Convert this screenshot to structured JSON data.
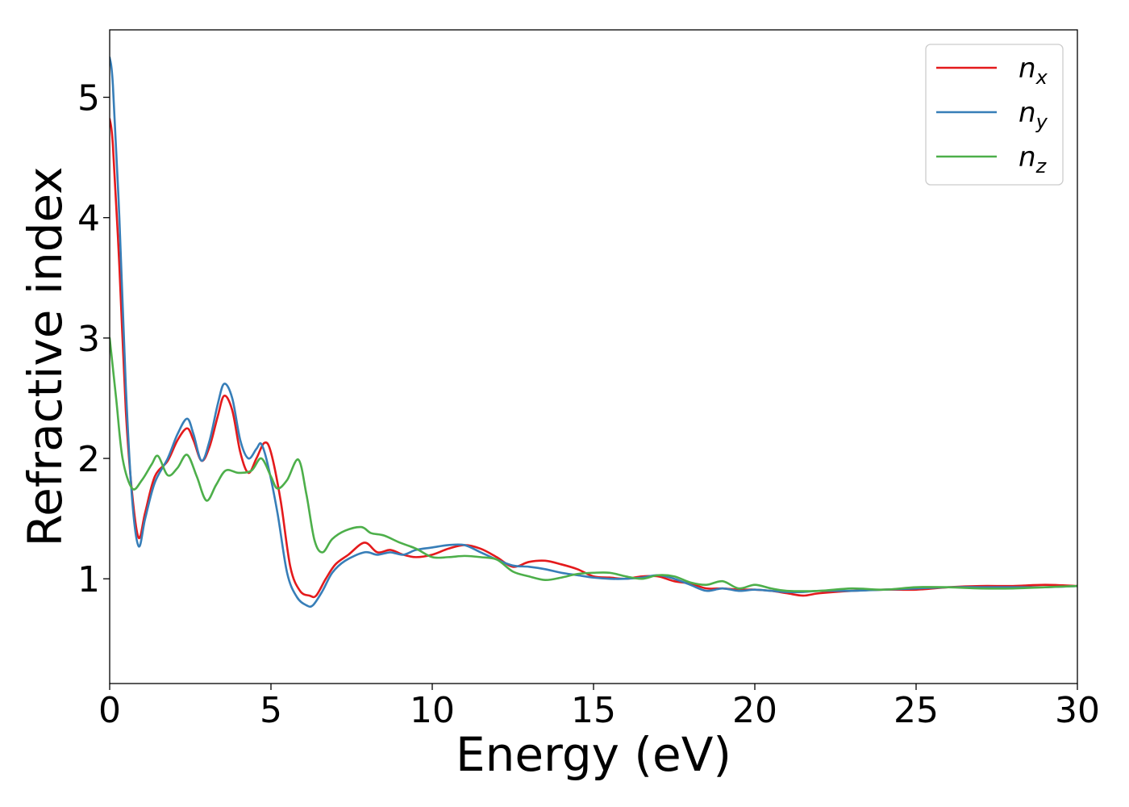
{
  "chart_data": {
    "type": "line",
    "title": "",
    "xlabel": "Energy (eV)",
    "ylabel": "Refractive index",
    "xlim": [
      0,
      30
    ],
    "ylim": [
      0.13,
      5.56
    ],
    "xticks": [
      0,
      5,
      10,
      15,
      20,
      25,
      30
    ],
    "yticks": [
      1,
      2,
      3,
      4,
      5
    ],
    "grid": false,
    "legend_placement": "top-right",
    "series": [
      {
        "name": "n",
        "subscript": "x",
        "color": "#e41a1c",
        "x": [
          0,
          0.1,
          0.3,
          0.5,
          0.7,
          0.9,
          1.1,
          1.4,
          1.8,
          2.1,
          2.4,
          2.6,
          2.85,
          3.1,
          3.35,
          3.55,
          3.8,
          4.05,
          4.3,
          4.55,
          4.8,
          5.0,
          5.3,
          5.6,
          5.9,
          6.2,
          6.4,
          6.7,
          7.0,
          7.4,
          7.9,
          8.3,
          8.7,
          9.1,
          9.5,
          10.0,
          10.5,
          11.0,
          11.5,
          12.0,
          12.5,
          13.0,
          13.5,
          14.0,
          14.5,
          15.0,
          15.5,
          16.0,
          16.5,
          17.0,
          17.5,
          18.0,
          18.5,
          19.0,
          19.5,
          20.0,
          20.5,
          21.0,
          21.5,
          22.0,
          23.0,
          24.0,
          25.0,
          26.0,
          27.0,
          28.0,
          29.0,
          30.0
        ],
        "values": [
          4.82,
          4.6,
          3.6,
          2.4,
          1.7,
          1.34,
          1.55,
          1.85,
          1.98,
          2.15,
          2.25,
          2.15,
          1.98,
          2.1,
          2.35,
          2.52,
          2.4,
          2.05,
          1.88,
          2.0,
          2.13,
          2.05,
          1.65,
          1.1,
          0.9,
          0.86,
          0.86,
          1.0,
          1.12,
          1.2,
          1.3,
          1.22,
          1.24,
          1.2,
          1.18,
          1.2,
          1.25,
          1.28,
          1.25,
          1.18,
          1.1,
          1.14,
          1.15,
          1.12,
          1.08,
          1.02,
          1.01,
          1.0,
          1.02,
          1.02,
          0.98,
          0.96,
          0.92,
          0.92,
          0.91,
          0.91,
          0.9,
          0.88,
          0.86,
          0.88,
          0.9,
          0.91,
          0.91,
          0.93,
          0.94,
          0.94,
          0.95,
          0.94
        ]
      },
      {
        "name": "n",
        "subscript": "y",
        "color": "#377eb8",
        "x": [
          0,
          0.1,
          0.3,
          0.5,
          0.7,
          0.9,
          1.1,
          1.4,
          1.8,
          2.1,
          2.4,
          2.6,
          2.85,
          3.1,
          3.35,
          3.55,
          3.8,
          4.05,
          4.3,
          4.55,
          4.7,
          4.9,
          5.2,
          5.5,
          5.8,
          6.1,
          6.3,
          6.6,
          6.9,
          7.3,
          7.9,
          8.3,
          8.7,
          9.1,
          9.5,
          10.0,
          10.5,
          11.0,
          11.5,
          12.0,
          12.5,
          13.0,
          13.5,
          14.0,
          14.5,
          15.0,
          15.5,
          16.0,
          16.5,
          17.0,
          17.5,
          18.0,
          18.5,
          19.0,
          19.5,
          20.0,
          20.5,
          21.0,
          21.5,
          22.0,
          23.0,
          24.0,
          25.0,
          26.0,
          27.0,
          28.0,
          29.0,
          30.0
        ],
        "values": [
          5.33,
          5.1,
          4.0,
          2.6,
          1.65,
          1.27,
          1.5,
          1.8,
          2.0,
          2.2,
          2.33,
          2.2,
          1.98,
          2.15,
          2.45,
          2.62,
          2.5,
          2.15,
          2.0,
          2.08,
          2.12,
          1.95,
          1.55,
          1.05,
          0.85,
          0.78,
          0.78,
          0.9,
          1.05,
          1.15,
          1.22,
          1.2,
          1.22,
          1.2,
          1.24,
          1.26,
          1.28,
          1.28,
          1.22,
          1.16,
          1.11,
          1.1,
          1.08,
          1.05,
          1.03,
          1.01,
          1.0,
          1.0,
          1.01,
          1.03,
          1.0,
          0.95,
          0.9,
          0.92,
          0.9,
          0.91,
          0.9,
          0.89,
          0.89,
          0.9,
          0.9,
          0.91,
          0.92,
          0.93,
          0.93,
          0.93,
          0.93,
          0.94
        ]
      },
      {
        "name": "n",
        "subscript": "z",
        "color": "#4daf4a",
        "x": [
          0,
          0.2,
          0.4,
          0.7,
          1.0,
          1.3,
          1.5,
          1.8,
          2.1,
          2.4,
          2.7,
          3.0,
          3.3,
          3.6,
          4.0,
          4.4,
          4.7,
          5.0,
          5.2,
          5.5,
          5.85,
          6.1,
          6.35,
          6.6,
          6.9,
          7.3,
          7.8,
          8.1,
          8.5,
          9.0,
          9.5,
          10.0,
          10.5,
          11.0,
          11.5,
          12.0,
          12.5,
          13.0,
          13.5,
          14.0,
          14.5,
          15.0,
          15.5,
          16.0,
          16.5,
          17.0,
          17.5,
          18.0,
          18.5,
          19.0,
          19.5,
          20.0,
          20.5,
          21.0,
          22.0,
          23.0,
          24.0,
          25.0,
          26.0,
          27.0,
          28.0,
          29.0,
          30.0
        ],
        "values": [
          3.0,
          2.5,
          2.0,
          1.75,
          1.82,
          1.95,
          2.02,
          1.86,
          1.92,
          2.03,
          1.85,
          1.65,
          1.78,
          1.9,
          1.88,
          1.9,
          2.0,
          1.85,
          1.75,
          1.82,
          1.99,
          1.7,
          1.32,
          1.22,
          1.33,
          1.4,
          1.43,
          1.38,
          1.36,
          1.3,
          1.25,
          1.18,
          1.18,
          1.19,
          1.18,
          1.16,
          1.06,
          1.02,
          0.99,
          1.01,
          1.04,
          1.05,
          1.05,
          1.02,
          1.0,
          1.03,
          1.02,
          0.97,
          0.95,
          0.98,
          0.92,
          0.95,
          0.92,
          0.9,
          0.9,
          0.92,
          0.91,
          0.93,
          0.93,
          0.92,
          0.92,
          0.93,
          0.94
        ]
      }
    ]
  }
}
